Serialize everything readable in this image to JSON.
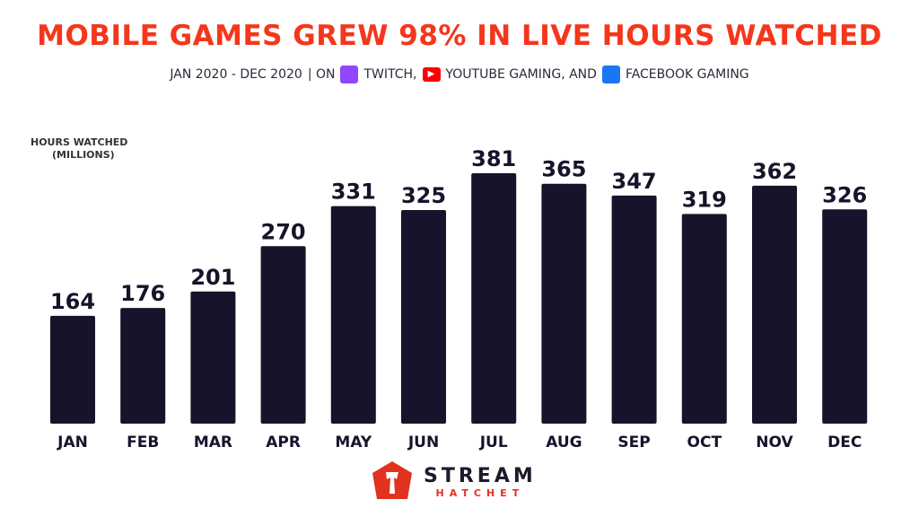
{
  "chart_data": {
    "type": "bar",
    "title": "MOBILE GAMES GREW 98% IN LIVE HOURS WATCHED",
    "subtitle": {
      "period": "JAN 2020 - DEC 2020",
      "on": "| ON",
      "twitch": "TWITCH,",
      "youtube": "YOUTUBE GAMING, AND",
      "facebook": "FACEBOOK GAMING"
    },
    "ylabel_line1": "HOURS WATCHED",
    "ylabel_line2": "(MILLIONS)",
    "categories": [
      "JAN",
      "FEB",
      "MAR",
      "APR",
      "MAY",
      "JUN",
      "JUL",
      "AUG",
      "SEP",
      "OCT",
      "NOV",
      "DEC"
    ],
    "values": [
      164,
      176,
      201,
      270,
      331,
      325,
      381,
      365,
      347,
      319,
      362,
      326
    ],
    "ylim": [
      0,
      381
    ],
    "grid": false,
    "bar_color": "#16142a",
    "title_color": "#f5361b",
    "icon_colors": {
      "twitch": "#9146ff",
      "youtube": "#ff0000",
      "facebook": "#1877f2"
    }
  },
  "brand": {
    "line1": "STREAM",
    "line2": "HATCHET"
  }
}
